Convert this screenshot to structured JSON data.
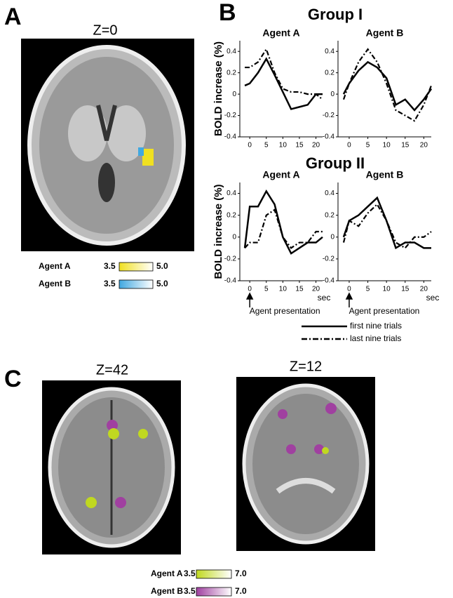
{
  "figure": {
    "panel_a": {
      "label": "A",
      "slice": "Z=0",
      "colorbars": [
        {
          "name": "Agent A",
          "min": "3.5",
          "max": "5.0"
        },
        {
          "name": "Agent B",
          "min": "3.5",
          "max": "5.0"
        }
      ]
    },
    "panel_b": {
      "label": "B",
      "groups": [
        "Group I",
        "Group II"
      ],
      "annotation": "Agent presentation"
    },
    "panel_c": {
      "label": "C",
      "slices": [
        "Z=42",
        "Z=12"
      ],
      "colorbars": [
        {
          "name": "Agent A",
          "min": "3.5",
          "max": "7.0"
        },
        {
          "name": "Agent B",
          "min": "3.5",
          "max": "7.0"
        }
      ]
    }
  },
  "chart_data": [
    {
      "type": "line",
      "title": "Agent A",
      "ylabel": "BOLD increase (%)",
      "x": [
        -1.5,
        0,
        2.5,
        5,
        7.5,
        10,
        12.5,
        15,
        17.5,
        20,
        22
      ],
      "series": [
        {
          "name": "first nine trials",
          "color": "#000000",
          "style": "solid",
          "values": [
            0.08,
            0.1,
            0.2,
            0.33,
            0.18,
            0.02,
            -0.14,
            -0.12,
            -0.1,
            0.0,
            0.0
          ]
        },
        {
          "name": "last nine trials",
          "color": "#000000",
          "style": "dashdot",
          "values": [
            0.25,
            0.25,
            0.3,
            0.42,
            0.2,
            0.05,
            0.02,
            0.02,
            0.0,
            0.0,
            -0.05
          ]
        }
      ],
      "xlim": [
        -3,
        22
      ],
      "xticks": [
        0,
        5,
        10,
        15,
        20
      ],
      "ylim": [
        -0.4,
        0.5
      ],
      "yticks": [
        -0.4,
        -0.2,
        0,
        0.2,
        0.4
      ]
    },
    {
      "type": "line",
      "title": "Agent B",
      "x": [
        -1.5,
        0,
        2.5,
        5,
        7.5,
        10,
        12.5,
        15,
        17.5,
        20,
        22
      ],
      "series": [
        {
          "name": "first nine trials",
          "color": "#000000",
          "style": "solid",
          "values": [
            0.0,
            0.1,
            0.22,
            0.3,
            0.25,
            0.15,
            -0.1,
            -0.05,
            -0.15,
            -0.05,
            0.05
          ]
        },
        {
          "name": "last nine trials",
          "color": "#000000",
          "style": "dashdot",
          "values": [
            -0.05,
            0.1,
            0.3,
            0.42,
            0.3,
            0.1,
            -0.15,
            -0.2,
            -0.25,
            -0.1,
            0.08
          ]
        }
      ],
      "xlim": [
        -3,
        22
      ],
      "xticks": [
        0,
        5,
        10,
        15,
        20
      ],
      "ylim": [
        -0.4,
        0.5
      ],
      "yticks": [
        -0.4,
        -0.2,
        0,
        0.2,
        0.4
      ]
    },
    {
      "type": "line",
      "title": "Agent A",
      "ylabel": "BOLD increase (%)",
      "xlabel": "sec",
      "x": [
        -1.5,
        0,
        2.5,
        5,
        7.5,
        10,
        12.5,
        15,
        17.5,
        20,
        22
      ],
      "series": [
        {
          "name": "first nine trials",
          "color": "#000000",
          "style": "solid",
          "values": [
            -0.1,
            0.28,
            0.28,
            0.42,
            0.3,
            0.0,
            -0.15,
            -0.1,
            -0.05,
            -0.05,
            0.0
          ]
        },
        {
          "name": "last nine trials",
          "color": "#000000",
          "style": "dashdot",
          "values": [
            -0.1,
            -0.05,
            -0.05,
            0.2,
            0.25,
            0.0,
            -0.1,
            -0.05,
            -0.05,
            0.05,
            0.05
          ]
        }
      ],
      "xlim": [
        -3,
        22
      ],
      "xticks": [
        0,
        5,
        10,
        15,
        20
      ],
      "ylim": [
        -0.4,
        0.5
      ],
      "yticks": [
        -0.4,
        -0.2,
        0,
        0.2,
        0.4
      ]
    },
    {
      "type": "line",
      "title": "Agent B",
      "xlabel": "sec",
      "x": [
        -1.5,
        0,
        2.5,
        5,
        7.5,
        10,
        12.5,
        15,
        17.5,
        20,
        22
      ],
      "series": [
        {
          "name": "first nine trials",
          "color": "#000000",
          "style": "solid",
          "values": [
            0.0,
            0.15,
            0.2,
            0.28,
            0.36,
            0.15,
            -0.1,
            -0.05,
            -0.05,
            -0.1,
            -0.1
          ]
        },
        {
          "name": "last nine trials",
          "color": "#000000",
          "style": "dashdot",
          "values": [
            -0.05,
            0.15,
            0.1,
            0.22,
            0.3,
            0.15,
            -0.05,
            -0.1,
            0.0,
            0.0,
            0.05
          ]
        }
      ],
      "xlim": [
        -3,
        22
      ],
      "xticks": [
        0,
        5,
        10,
        15,
        20
      ],
      "ylim": [
        -0.4,
        0.5
      ],
      "yticks": [
        -0.4,
        -0.2,
        0,
        0.2,
        0.4
      ]
    }
  ]
}
